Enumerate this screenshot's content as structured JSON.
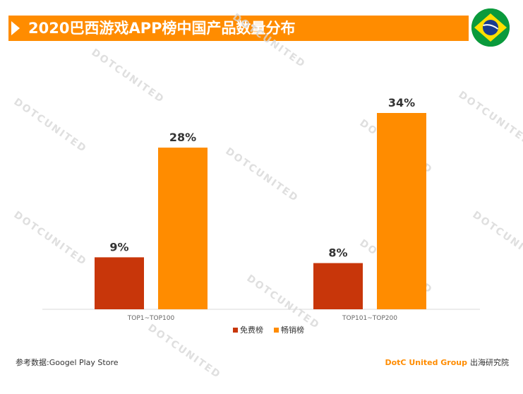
{
  "header": {
    "title": "2020巴西游戏APP榜中国产品数量分布"
  },
  "flag": {
    "icon": "brazil-flag-icon"
  },
  "watermark": {
    "text": "DOTCUNITED"
  },
  "colors": {
    "accent": "#ff8c00",
    "free": "#c8360a",
    "grossing": "#ff8c00"
  },
  "chart_data": {
    "type": "bar",
    "categories": [
      "TOP1~TOP100",
      "TOP101~TOP200"
    ],
    "series": [
      {
        "name": "免费榜",
        "values": [
          9,
          8
        ],
        "labels": [
          "9%",
          "8%"
        ],
        "color": "#c8360a"
      },
      {
        "name": "畅销榜",
        "values": [
          28,
          34
        ],
        "labels": [
          "28%",
          "34%"
        ],
        "color": "#ff8c00"
      }
    ],
    "ylim": [
      0,
      40
    ],
    "legend_position": "bottom",
    "grid": false
  },
  "footer": {
    "source": "参考数据:Googel Play Store",
    "brand": "DotC United Group",
    "brand_sub": "出海研究院"
  }
}
